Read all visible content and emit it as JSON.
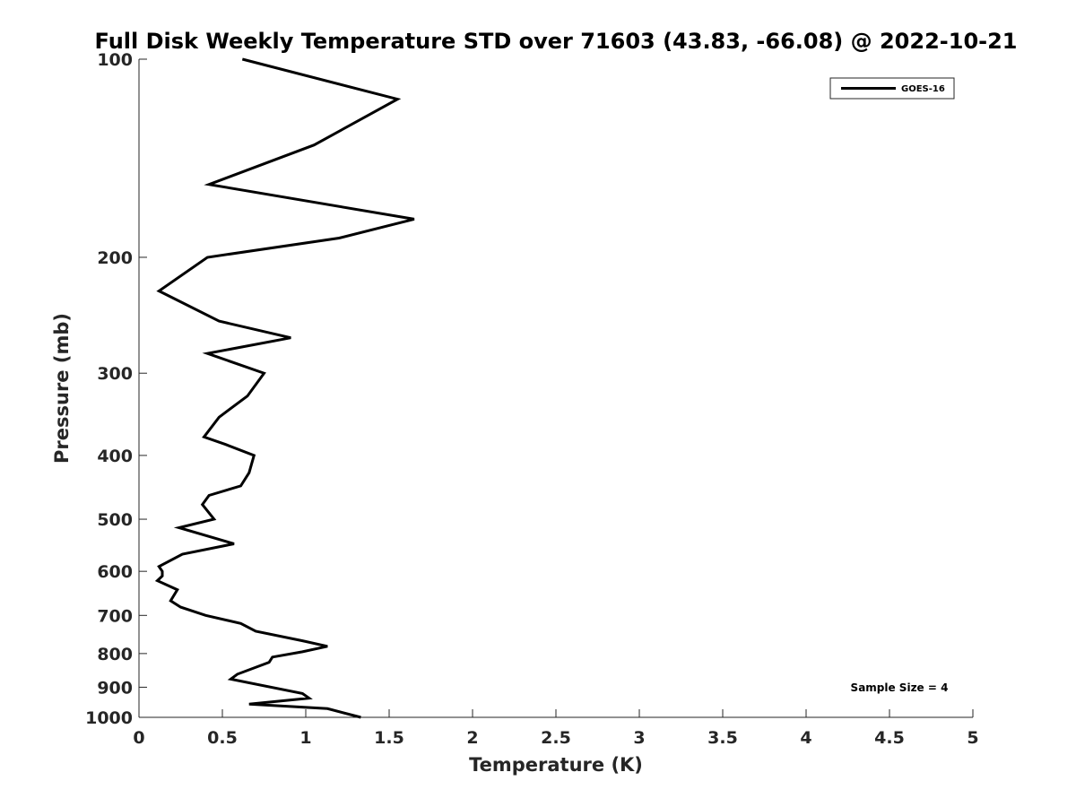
{
  "chart_data": {
    "type": "line",
    "title": "Full Disk Weekly Temperature STD over 71603 (43.83, -66.08) @ 2022-10-21",
    "xlabel": "Temperature (K)",
    "ylabel": "Pressure (mb)",
    "xlim": [
      0,
      5
    ],
    "ylim": [
      100,
      1000
    ],
    "y_scale": "log",
    "y_direction": "reversed",
    "x_ticks": [
      "0",
      "0.5",
      "1",
      "1.5",
      "2",
      "2.5",
      "3",
      "3.5",
      "4",
      "4.5",
      "5"
    ],
    "x_tick_values": [
      0,
      0.5,
      1,
      1.5,
      2,
      2.5,
      3,
      3.5,
      4,
      4.5,
      5
    ],
    "y_ticks": [
      "100",
      "200",
      "300",
      "400",
      "500",
      "600",
      "700",
      "800",
      "900",
      "1000"
    ],
    "y_tick_values": [
      100,
      200,
      300,
      400,
      500,
      600,
      700,
      800,
      900,
      1000
    ],
    "grid": false,
    "legend_position": "top-right",
    "series": [
      {
        "name": "GOES-16",
        "color": "#000000",
        "points": [
          [
            0.62,
            100
          ],
          [
            1.55,
            115
          ],
          [
            1.05,
            135
          ],
          [
            0.42,
            155
          ],
          [
            1.65,
            175
          ],
          [
            1.2,
            187
          ],
          [
            0.41,
            200
          ],
          [
            0.12,
            225
          ],
          [
            0.48,
            250
          ],
          [
            0.91,
            265
          ],
          [
            0.41,
            280
          ],
          [
            0.75,
            300
          ],
          [
            0.65,
            325
          ],
          [
            0.48,
            350
          ],
          [
            0.39,
            375
          ],
          [
            0.52,
            385
          ],
          [
            0.69,
            400
          ],
          [
            0.66,
            425
          ],
          [
            0.61,
            445
          ],
          [
            0.42,
            460
          ],
          [
            0.38,
            475
          ],
          [
            0.45,
            500
          ],
          [
            0.24,
            515
          ],
          [
            0.57,
            545
          ],
          [
            0.26,
            565
          ],
          [
            0.12,
            590
          ],
          [
            0.14,
            600
          ],
          [
            0.14,
            610
          ],
          [
            0.11,
            620
          ],
          [
            0.23,
            640
          ],
          [
            0.19,
            665
          ],
          [
            0.25,
            680
          ],
          [
            0.4,
            700
          ],
          [
            0.61,
            720
          ],
          [
            0.7,
            740
          ],
          [
            0.98,
            765
          ],
          [
            1.13,
            780
          ],
          [
            0.98,
            795
          ],
          [
            0.8,
            810
          ],
          [
            0.78,
            825
          ],
          [
            0.59,
            860
          ],
          [
            0.55,
            875
          ],
          [
            0.98,
            920
          ],
          [
            1.02,
            935
          ],
          [
            0.66,
            955
          ],
          [
            1.13,
            970
          ],
          [
            1.33,
            1000
          ]
        ]
      }
    ],
    "annotations": [
      {
        "text": "Sample Size = 4",
        "position": "bottom-right"
      }
    ]
  }
}
